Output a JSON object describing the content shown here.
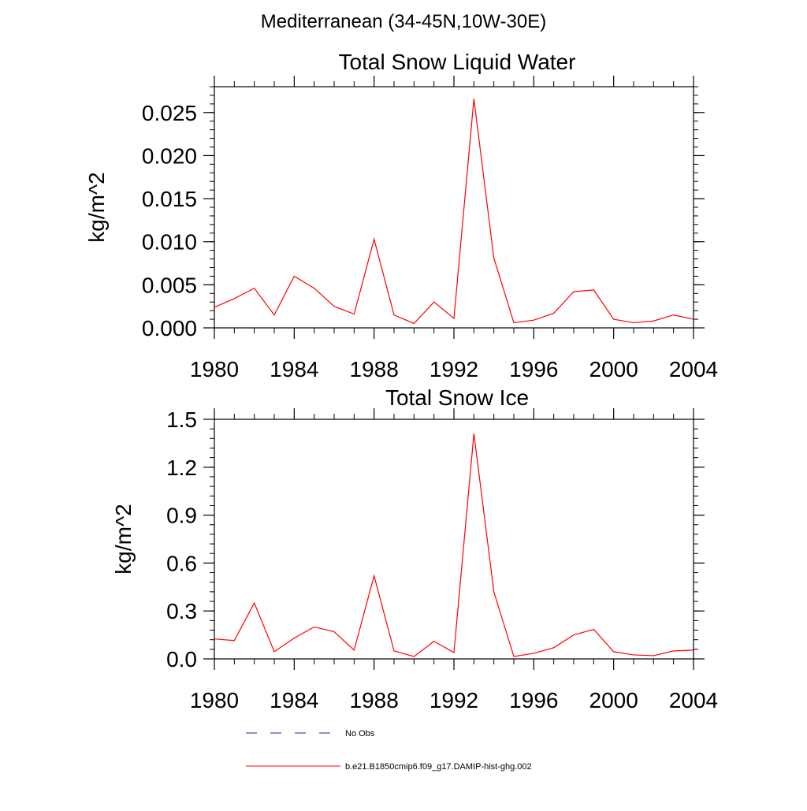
{
  "figure_title": "Mediterranean (34-45N,10W-30E)",
  "chart_data": [
    {
      "type": "line",
      "title": "Total Snow Liquid Water",
      "xlabel": "",
      "ylabel": "kg/m^2",
      "xlim": [
        1980,
        2004
      ],
      "ylim": [
        0,
        0.028
      ],
      "x_ticks": [
        1980,
        1984,
        1988,
        1992,
        1996,
        2000,
        2004
      ],
      "x_tick_labels": [
        "1980",
        "1984",
        "1988",
        "1992",
        "1996",
        "2000",
        "2004"
      ],
      "y_ticks": [
        0,
        0.005,
        0.01,
        0.015,
        0.02,
        0.025
      ],
      "y_tick_labels": [
        "0.000",
        "0.005",
        "0.010",
        "0.015",
        "0.020",
        "0.025"
      ],
      "y_minor_step": 0.001,
      "grid": false,
      "x": [
        1980,
        1981,
        1982,
        1983,
        1984,
        1985,
        1986,
        1987,
        1988,
        1989,
        1990,
        1991,
        1992,
        1993,
        1994,
        1995,
        1996,
        1997,
        1998,
        1999,
        2000,
        2001,
        2002,
        2003,
        2004
      ],
      "series": [
        {
          "name": "b.e21.B1850cmip6.f09_g17.DAMIP-hist-ghg.002",
          "color": "#ff0000",
          "values": [
            0.0024,
            0.0034,
            0.0046,
            0.0015,
            0.006,
            0.0046,
            0.0025,
            0.0016,
            0.0103,
            0.0015,
            0.0005,
            0.003,
            0.0011,
            0.0266,
            0.0081,
            0.0006,
            0.0009,
            0.0017,
            0.0042,
            0.0044,
            0.001,
            0.0006,
            0.0008,
            0.0015,
            0.001
          ]
        }
      ]
    },
    {
      "type": "line",
      "title": "Total Snow Ice",
      "xlabel": "",
      "ylabel": "kg/m^2",
      "xlim": [
        1980,
        2004
      ],
      "ylim": [
        0,
        1.5
      ],
      "x_ticks": [
        1980,
        1984,
        1988,
        1992,
        1996,
        2000,
        2004
      ],
      "x_tick_labels": [
        "1980",
        "1984",
        "1988",
        "1992",
        "1996",
        "2000",
        "2004"
      ],
      "y_ticks": [
        0,
        0.3,
        0.6,
        0.9,
        1.2,
        1.5
      ],
      "y_tick_labels": [
        "0.0",
        "0.3",
        "0.6",
        "0.9",
        "1.2",
        "1.5"
      ],
      "y_minor_step": 0.06,
      "grid": false,
      "x": [
        1980,
        1981,
        1982,
        1983,
        1984,
        1985,
        1986,
        1987,
        1988,
        1989,
        1990,
        1991,
        1992,
        1993,
        1994,
        1995,
        1996,
        1997,
        1998,
        1999,
        2000,
        2001,
        2002,
        2003,
        2004
      ],
      "series": [
        {
          "name": "b.e21.B1850cmip6.f09_g17.DAMIP-hist-ghg.002",
          "color": "#ff0000",
          "values": [
            0.125,
            0.115,
            0.35,
            0.045,
            0.13,
            0.2,
            0.17,
            0.055,
            0.52,
            0.05,
            0.015,
            0.11,
            0.04,
            1.41,
            0.42,
            0.015,
            0.035,
            0.07,
            0.15,
            0.185,
            0.045,
            0.025,
            0.02,
            0.05,
            0.055
          ]
        }
      ]
    }
  ],
  "legend": {
    "placement": "bottom",
    "entries": [
      {
        "label": "No Obs",
        "style": "dashed",
        "color": "#1e2a8a"
      },
      {
        "label": "b.e21.B1850cmip6.f09_g17.DAMIP-hist-ghg.002",
        "style": "solid",
        "color": "#ff0000"
      }
    ]
  }
}
